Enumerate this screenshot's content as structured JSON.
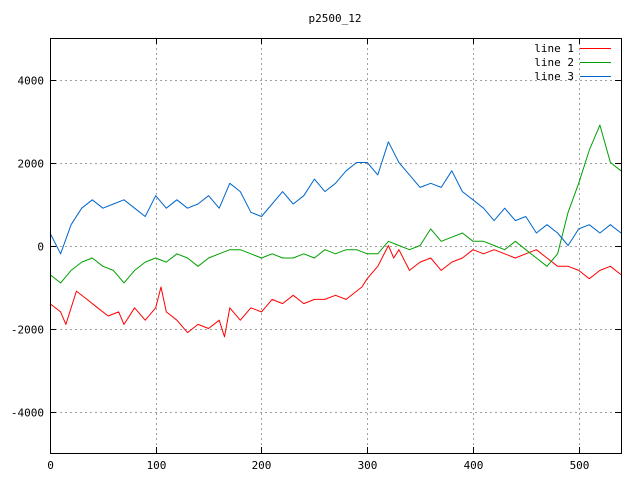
{
  "chart_data": {
    "type": "line",
    "title": "p2500_12",
    "xlabel": "",
    "ylabel": "",
    "xlim": [
      0,
      540
    ],
    "ylim": [
      -5000,
      5000
    ],
    "x_ticks": [
      0,
      100,
      200,
      300,
      400,
      500
    ],
    "y_ticks": [
      -4000,
      -2000,
      0,
      2000,
      4000
    ],
    "grid": true,
    "legend_position": "top-right",
    "series": [
      {
        "name": "line 1",
        "color": "#ff0000",
        "x": [
          0,
          10,
          15,
          25,
          35,
          45,
          55,
          65,
          70,
          80,
          90,
          100,
          105,
          110,
          120,
          130,
          140,
          150,
          160,
          165,
          170,
          180,
          190,
          200,
          210,
          220,
          230,
          240,
          250,
          260,
          270,
          280,
          290,
          295,
          300,
          310,
          320,
          325,
          330,
          340,
          350,
          360,
          370,
          380,
          390,
          400,
          410,
          420,
          430,
          440,
          450,
          460,
          470,
          480,
          490,
          500,
          510,
          515,
          520,
          530,
          540
        ],
        "values": [
          -1400,
          -1600,
          -1900,
          -1100,
          -1300,
          -1500,
          -1700,
          -1600,
          -1900,
          -1500,
          -1800,
          -1500,
          -1000,
          -1600,
          -1800,
          -2100,
          -1900,
          -2000,
          -1800,
          -2200,
          -1500,
          -1800,
          -1500,
          -1600,
          -1300,
          -1400,
          -1200,
          -1400,
          -1300,
          -1300,
          -1200,
          -1300,
          -1100,
          -1000,
          -800,
          -500,
          0,
          -300,
          -100,
          -600,
          -400,
          -300,
          -600,
          -400,
          -300,
          -100,
          -200,
          -100,
          -200,
          -300,
          -200,
          -100,
          -300,
          -500,
          -500,
          -600,
          -800,
          -700,
          -600,
          -500,
          -700
        ]
      },
      {
        "name": "line 2",
        "color": "#00a000",
        "x": [
          0,
          10,
          20,
          30,
          40,
          50,
          60,
          70,
          80,
          90,
          100,
          110,
          120,
          130,
          140,
          150,
          160,
          170,
          180,
          190,
          200,
          210,
          220,
          230,
          240,
          250,
          260,
          270,
          280,
          290,
          300,
          310,
          320,
          330,
          340,
          350,
          360,
          370,
          380,
          390,
          400,
          410,
          420,
          430,
          440,
          450,
          460,
          470,
          480,
          490,
          500,
          510,
          520,
          530,
          540
        ],
        "values": [
          -700,
          -900,
          -600,
          -400,
          -300,
          -500,
          -600,
          -900,
          -600,
          -400,
          -300,
          -400,
          -200,
          -300,
          -500,
          -300,
          -200,
          -100,
          -100,
          -200,
          -300,
          -200,
          -300,
          -300,
          -200,
          -300,
          -100,
          -200,
          -100,
          -100,
          -200,
          -200,
          100,
          0,
          -100,
          0,
          400,
          100,
          200,
          300,
          100,
          100,
          0,
          -100,
          100,
          -100,
          -300,
          -500,
          -200,
          800,
          1500,
          2300,
          2900,
          2000,
          1800
        ]
      },
      {
        "name": "line 3",
        "color": "#0066cc",
        "x": [
          0,
          10,
          20,
          30,
          40,
          50,
          60,
          70,
          80,
          90,
          100,
          110,
          120,
          130,
          140,
          150,
          160,
          170,
          180,
          190,
          200,
          210,
          220,
          230,
          240,
          250,
          260,
          270,
          280,
          290,
          300,
          310,
          320,
          330,
          340,
          350,
          360,
          370,
          380,
          390,
          400,
          410,
          420,
          430,
          440,
          450,
          460,
          470,
          480,
          490,
          500,
          510,
          520,
          530,
          540
        ],
        "values": [
          300,
          -200,
          500,
          900,
          1100,
          900,
          1000,
          1100,
          900,
          700,
          1200,
          900,
          1100,
          900,
          1000,
          1200,
          900,
          1500,
          1300,
          800,
          700,
          1000,
          1300,
          1000,
          1200,
          1600,
          1300,
          1500,
          1800,
          2000,
          2000,
          1700,
          2500,
          2000,
          1700,
          1400,
          1500,
          1400,
          1800,
          1300,
          1100,
          900,
          600,
          900,
          600,
          700,
          300,
          500,
          300,
          0,
          400,
          500,
          300,
          500,
          300
        ]
      }
    ]
  }
}
